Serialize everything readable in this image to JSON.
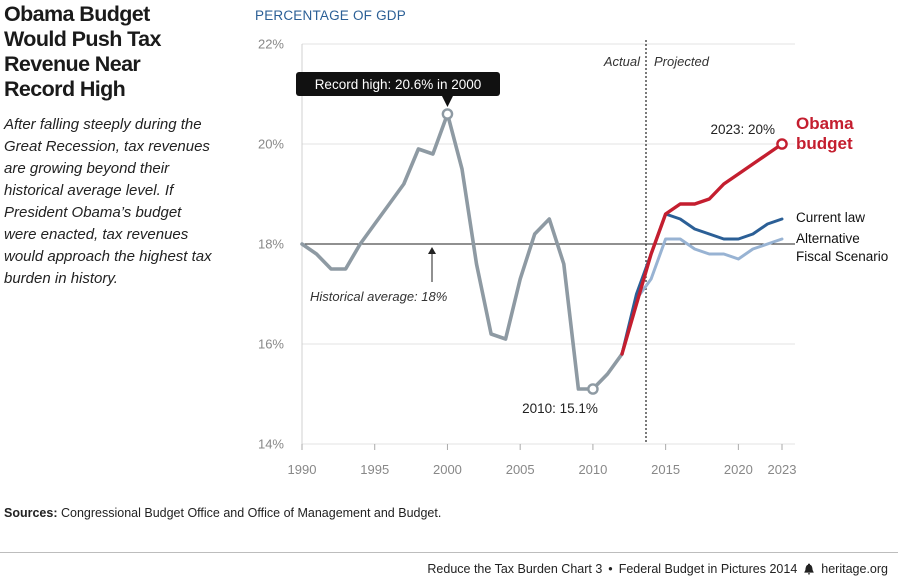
{
  "title": "Obama Budget Would Push Tax Revenue Near Record High",
  "subtitle": "After falling steeply during the Great Recession, tax revenues are growing beyond their historical average level. If President Obama’s budget were enacted, tax revenues would approach the highest tax burden in history.",
  "sources_label": "Sources:",
  "sources_text": "Congressional Budget Office and Office of Management and Budget.",
  "footer": {
    "chart_ref": "Reduce the Tax Burden Chart 3",
    "separator": "•",
    "publication": "Federal Budget in Pictures 2014",
    "site": "heritage.org",
    "logo_icon": "liberty-bell-icon"
  },
  "colors": {
    "historical": "#8e9aa3",
    "obama": "#c41e2f",
    "current_law": "#2b5f96",
    "alternative": "#98b3d3",
    "axis_title": "#2b5f96"
  },
  "chart_data": {
    "type": "line",
    "ylabel": "PERCENTAGE OF GDP",
    "xlim": [
      1990,
      2023
    ],
    "ylim": [
      14,
      22
    ],
    "yticks": [
      14,
      16,
      18,
      20,
      22
    ],
    "ytick_labels": [
      "14%",
      "16%",
      "18%",
      "20%",
      "22%"
    ],
    "xticks": [
      1990,
      1995,
      2000,
      2005,
      2010,
      2015,
      2020,
      2023
    ],
    "xtick_labels": [
      "1990",
      "1995",
      "2000",
      "2005",
      "2010",
      "2015",
      "2020",
      "2023"
    ],
    "grid": "horizontal",
    "divider_year": 2012,
    "region_labels": {
      "actual": "Actual",
      "projected": "Projected"
    },
    "reference_line": {
      "value": 18,
      "label": "Historical average: 18%"
    },
    "series": [
      {
        "key": "historical",
        "x": [
          1990,
          1991,
          1992,
          1993,
          1994,
          1995,
          1996,
          1997,
          1998,
          1999,
          2000,
          2001,
          2002,
          2003,
          2004,
          2005,
          2006,
          2007,
          2008,
          2009,
          2010,
          2011,
          2012
        ],
        "values": [
          18.0,
          17.8,
          17.5,
          17.5,
          18.0,
          18.4,
          18.8,
          19.2,
          19.9,
          19.8,
          20.6,
          19.5,
          17.6,
          16.2,
          16.1,
          17.3,
          18.2,
          18.5,
          17.6,
          15.1,
          15.1,
          15.4,
          15.8
        ]
      },
      {
        "key": "current_law",
        "name": "Current law",
        "x": [
          2012,
          2013,
          2014,
          2015,
          2016,
          2017,
          2018,
          2019,
          2020,
          2021,
          2022,
          2023
        ],
        "values": [
          15.8,
          17.0,
          17.8,
          18.6,
          18.5,
          18.3,
          18.2,
          18.1,
          18.1,
          18.2,
          18.4,
          18.5
        ]
      },
      {
        "key": "alternative",
        "name": "Alternative Fiscal Scenario",
        "name_lines": [
          "Alternative",
          "Fiscal Scenario"
        ],
        "x": [
          2012,
          2013,
          2014,
          2015,
          2016,
          2017,
          2018,
          2019,
          2020,
          2021,
          2022,
          2023
        ],
        "values": [
          15.8,
          16.9,
          17.3,
          18.1,
          18.1,
          17.9,
          17.8,
          17.8,
          17.7,
          17.9,
          18.0,
          18.1
        ]
      },
      {
        "key": "obama",
        "name": "Obama budget",
        "name_lines": [
          "Obama",
          "budget"
        ],
        "x": [
          2012,
          2013,
          2014,
          2015,
          2016,
          2017,
          2018,
          2019,
          2020,
          2021,
          2022,
          2023
        ],
        "values": [
          15.8,
          16.8,
          17.8,
          18.6,
          18.8,
          18.8,
          18.9,
          19.2,
          19.4,
          19.6,
          19.8,
          20.0
        ]
      }
    ],
    "annotations": [
      {
        "key": "record",
        "text": "Record high: 20.6% in 2000",
        "x": 2000,
        "y": 20.6
      },
      {
        "key": "low",
        "text": "2010: 15.1%",
        "x": 2010,
        "y": 15.1
      },
      {
        "key": "end",
        "text": "2023: 20%",
        "x": 2023,
        "y": 20.0
      }
    ]
  }
}
